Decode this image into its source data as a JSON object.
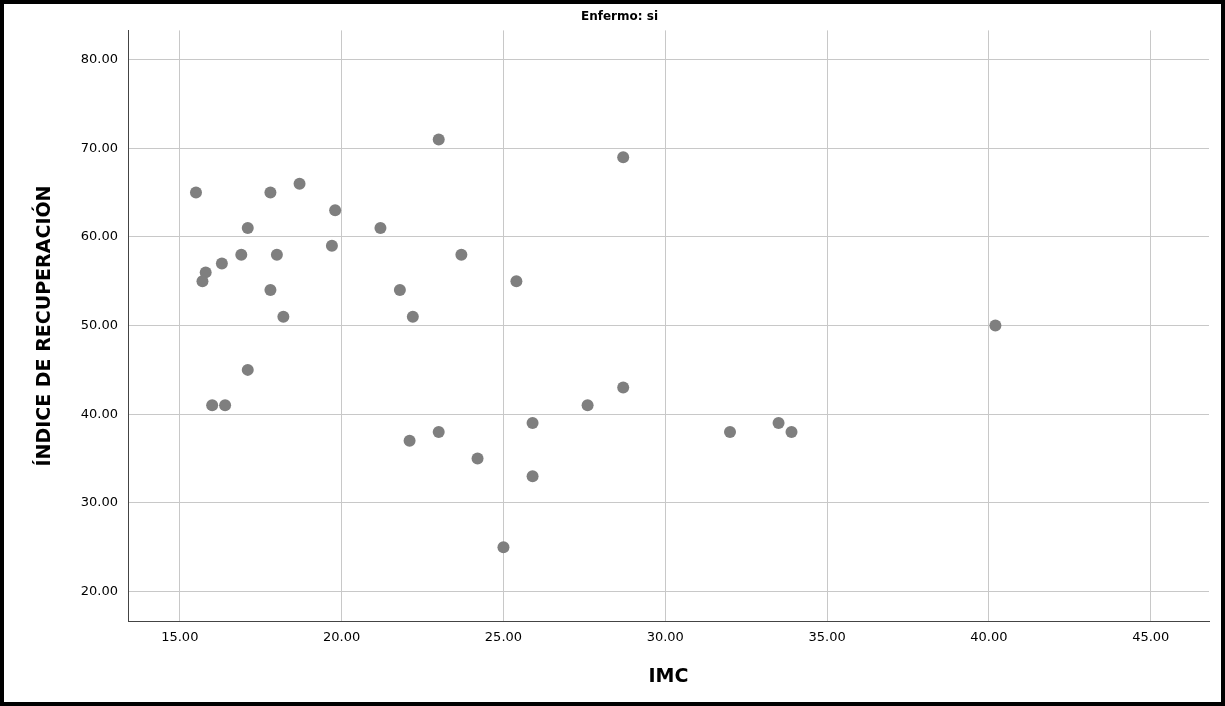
{
  "chart_data": {
    "type": "scatter",
    "title": "Enfermo: si",
    "xlabel": "IMC",
    "ylabel": "ÍNDICE DE RECUPERACIÓN",
    "x": [
      15.5,
      17.8,
      18.7,
      19.8,
      17.1,
      21.2,
      19.7,
      16.9,
      18.0,
      23.7,
      16.3,
      15.8,
      15.7,
      25.4,
      17.8,
      21.8,
      18.2,
      22.2,
      23.0,
      28.7,
      17.1,
      40.2,
      16.0,
      16.4,
      27.6,
      28.7,
      22.1,
      23.0,
      24.2,
      25.9,
      25.9,
      25.0,
      32.0,
      33.5,
      33.9
    ],
    "series": [
      {
        "color": "#7f7f7f",
        "values": [
          65,
          65,
          66,
          63,
          61,
          61,
          59,
          58,
          58,
          58,
          57,
          56,
          55,
          55,
          54,
          54,
          51,
          51,
          71,
          69,
          45,
          50,
          41,
          41,
          41,
          43,
          37,
          38,
          35,
          39,
          33,
          25,
          38,
          39,
          38
        ]
      }
    ],
    "xlim": [
      13.4,
      46.8
    ],
    "ylim": [
      16.6,
      83.3
    ],
    "xticks": [
      {
        "value": 15,
        "label": "15.00"
      },
      {
        "value": 20,
        "label": "20.00"
      },
      {
        "value": 25,
        "label": "25.00"
      },
      {
        "value": 30,
        "label": "30.00"
      },
      {
        "value": 35,
        "label": "35.00"
      },
      {
        "value": 40,
        "label": "40.00"
      },
      {
        "value": 45,
        "label": "45.00"
      }
    ],
    "yticks": [
      {
        "value": 20,
        "label": "20.00"
      },
      {
        "value": 30,
        "label": "30.00"
      },
      {
        "value": 40,
        "label": "40.00"
      },
      {
        "value": 50,
        "label": "50.00"
      },
      {
        "value": 60,
        "label": "60.00"
      },
      {
        "value": 70,
        "label": "70.00"
      },
      {
        "value": 80,
        "label": "80.00"
      }
    ],
    "grid": true,
    "legend": false,
    "marker": "circle"
  }
}
